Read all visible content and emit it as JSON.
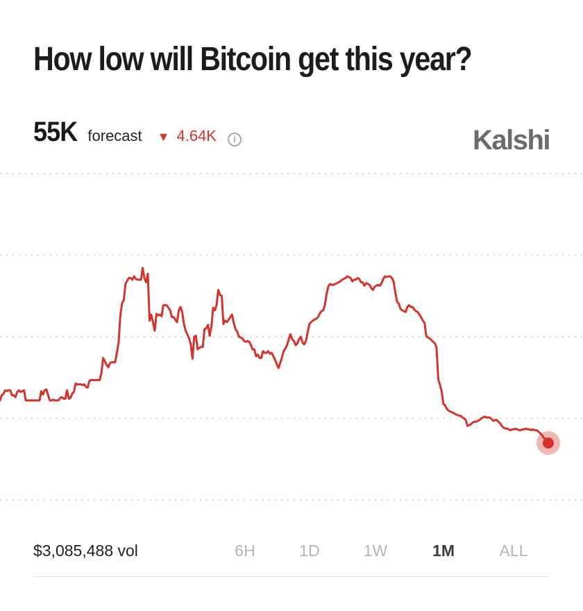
{
  "title": "How low will Bitcoin get this year?",
  "forecast": {
    "value": "55K",
    "label": "forecast",
    "change_arrow": "▼",
    "change": "4.64K",
    "info_icon": "i"
  },
  "brand": "Kalshi",
  "volume": "$3,085,488 vol",
  "tabs": [
    {
      "label": "6H",
      "active": false
    },
    {
      "label": "1D",
      "active": false
    },
    {
      "label": "1W",
      "active": false
    },
    {
      "label": "1M",
      "active": true
    },
    {
      "label": "ALL",
      "active": false
    }
  ],
  "colors": {
    "line": "#d2342c",
    "negative": "#d2342c",
    "brand": "#6b6b6b"
  },
  "chart_data": {
    "type": "line",
    "grid": true,
    "legend": "none",
    "series": [
      {
        "values": [
          0.5,
          0.56,
          0.58,
          0.62,
          0.61,
          0.62,
          0.62,
          0.56,
          0.56,
          0.54,
          0.6,
          0.62,
          0.6,
          0.61,
          0.62,
          0.5,
          0.5,
          0.5,
          0.5,
          0.5,
          0.5,
          0.5,
          0.5,
          0.5,
          0.61,
          0.57,
          0.62,
          0.63,
          0.56,
          0.5,
          0.5,
          0.51,
          0.5,
          0.5,
          0.5,
          0.53,
          0.54,
          0.52,
          0.52,
          0.62,
          0.52,
          0.53,
          0.58,
          0.6,
          0.7,
          0.69,
          0.69,
          0.69,
          0.68,
          0.69,
          0.66,
          0.65,
          0.73,
          0.74,
          0.74,
          0.74,
          0.74,
          0.74,
          0.74,
          0.82,
          1.0,
          0.96,
          0.92,
          0.89,
          0.94,
          0.95,
          0.95,
          0.95,
          1.06,
          1.18,
          1.5,
          1.64,
          1.68,
          1.87,
          1.91,
          1.94,
          1.94,
          1.92,
          1.96,
          1.93,
          1.92,
          1.92,
          1.92,
          2.06,
          1.94,
          1.89,
          1.99,
          1.44,
          1.51,
          1.42,
          1.32,
          1.52,
          1.5,
          1.51,
          1.49,
          1.62,
          1.62,
          1.62,
          1.59,
          1.56,
          1.48,
          1.48,
          1.45,
          1.42,
          1.56,
          1.6,
          1.54,
          1.4,
          1.32,
          1.28,
          1.23,
          1.16,
          0.99,
          1.25,
          1.26,
          1.1,
          1.12,
          1.13,
          1.13,
          1.34,
          1.35,
          1.39,
          1.26,
          1.37,
          1.59,
          1.56,
          1.62,
          1.8,
          1.74,
          1.73,
          1.4,
          1.44,
          1.42,
          1.45,
          1.48,
          1.51,
          1.41,
          1.34,
          1.31,
          1.25,
          1.24,
          1.23,
          1.2,
          1.19,
          1.2,
          1.19,
          1.15,
          1.1,
          1.1,
          1.02,
          1.04,
          1.0,
          1.0,
          1.08,
          1.06,
          1.06,
          1.08,
          1.05,
          1.06,
          1.02,
          0.98,
          0.93,
          0.88,
          0.94,
          1.0,
          1.08,
          1.11,
          1.15,
          1.22,
          1.28,
          1.22,
          1.2,
          1.15,
          1.17,
          1.22,
          1.25,
          1.18,
          1.16,
          1.2,
          1.3,
          1.4,
          1.42,
          1.44,
          1.45,
          1.46,
          1.48,
          1.52,
          1.55,
          1.56,
          1.62,
          1.75,
          1.84,
          1.87,
          1.86,
          1.86,
          1.87,
          1.88,
          1.89,
          1.9,
          1.92,
          1.93,
          1.94,
          1.96,
          1.95,
          1.94,
          1.9,
          1.92,
          1.92,
          1.94,
          1.93,
          1.89,
          1.89,
          1.85,
          1.88,
          1.87,
          1.86,
          1.82,
          1.8,
          1.84,
          1.85,
          1.86,
          1.85,
          1.88,
          1.93,
          1.96,
          1.95,
          1.96,
          1.96,
          1.94,
          1.9,
          1.77,
          1.66,
          1.64,
          1.58,
          1.56,
          1.55,
          1.54,
          1.6,
          1.62,
          1.6,
          1.6,
          1.57,
          1.55,
          1.54,
          1.51,
          1.48,
          1.44,
          1.41,
          1.26,
          1.24,
          1.23,
          1.21,
          1.19,
          1.17,
          1.12,
          0.75,
          0.68,
          0.6,
          0.46,
          0.44,
          0.4,
          0.38,
          0.37,
          0.36,
          0.35,
          0.34,
          0.33,
          0.32,
          0.32,
          0.3,
          0.29,
          0.27,
          0.2,
          0.21,
          0.22,
          0.24,
          0.25,
          0.25,
          0.26,
          0.27,
          0.29,
          0.3,
          0.31,
          0.3,
          0.3,
          0.3,
          0.28,
          0.26,
          0.27,
          0.27,
          0.25,
          0.23,
          0.2,
          0.18,
          0.17,
          0.17,
          0.16,
          0.15,
          0.16,
          0.16,
          0.17,
          0.16,
          0.15,
          0.15,
          0.16,
          0.16,
          0.17,
          0.16,
          0.16,
          0.15,
          0.16,
          0.15,
          0.15,
          0.14,
          0.12,
          0.1,
          0.07,
          0.05,
          0.04,
          0.0
        ]
      }
    ]
  }
}
